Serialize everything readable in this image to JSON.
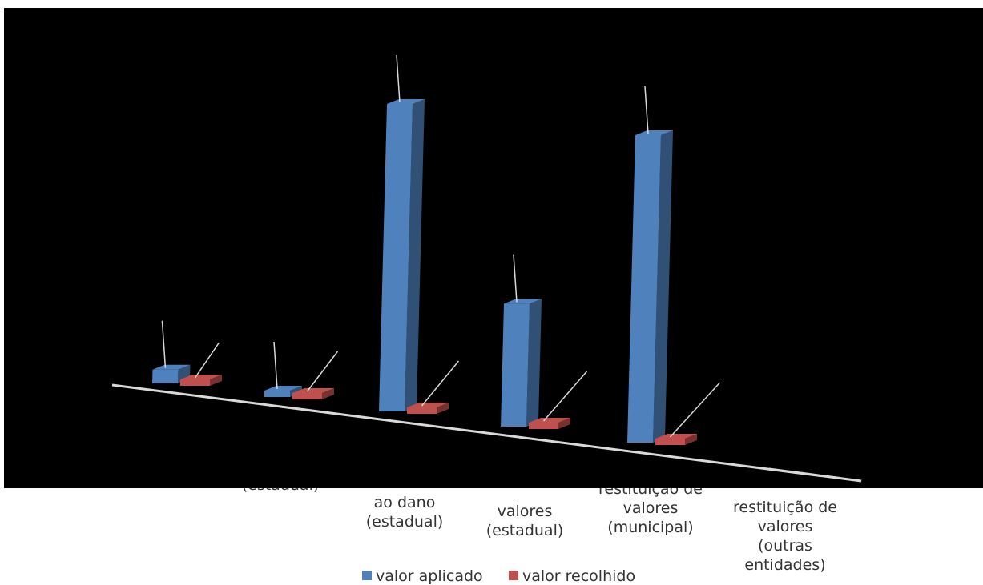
{
  "chart_data": {
    "type": "bar",
    "subtype": "3d-clustered-column",
    "categories": [
      "(estadual)",
      "ao dano (estadual)",
      "valores (estadual)",
      "restituição de valores (municipal)",
      "restituição de valores (outras entidades)"
    ],
    "category_label_lines": [
      [
        "(estadual)"
      ],
      [
        "ao dano",
        "(estadual)"
      ],
      [
        "valores",
        "(estadual)"
      ],
      [
        "restituição de",
        "valores",
        "(municipal)"
      ],
      [
        "restituição de",
        "valores",
        "(outras",
        "entidades)"
      ]
    ],
    "series": [
      {
        "name": "valor aplicado",
        "color": "#4f81bd",
        "values": [
          4.5,
          0.2,
          100,
          40,
          100
        ]
      },
      {
        "name": "valor recolhido",
        "color": "#c0504d",
        "values": [
          0.4,
          0.2,
          0.6,
          0.6,
          0.6
        ]
      }
    ],
    "legend": {
      "position": "bottom"
    },
    "grid": false,
    "plot_background": "#000000",
    "axis_line_color": "#d9d9d9",
    "leader_line_color": "#d9d9d9"
  }
}
